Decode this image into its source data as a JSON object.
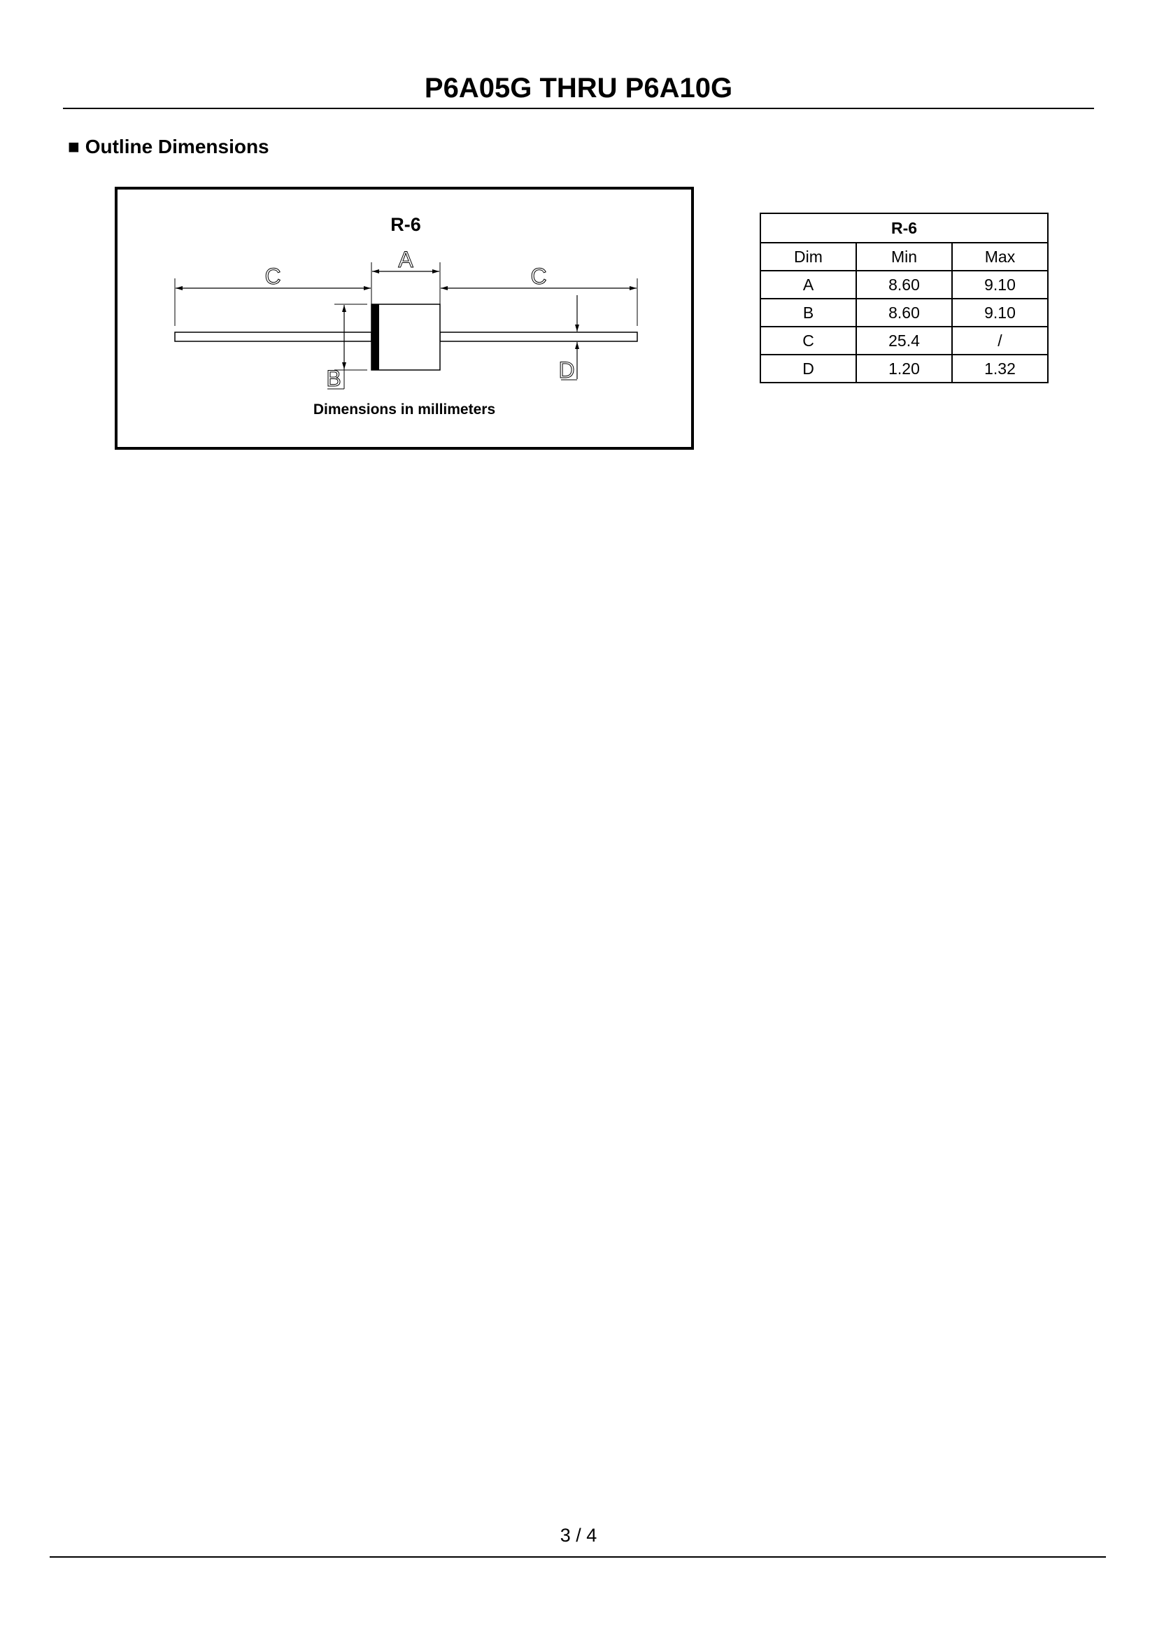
{
  "header": {
    "title": "P6A05G THRU P6A10G"
  },
  "section": {
    "bullet": "■",
    "heading": "Outline Dimensions"
  },
  "diagram": {
    "package": "R-6",
    "labels": {
      "a": "A",
      "b": "B",
      "c_left": "C",
      "c_right": "C",
      "d": "D"
    },
    "caption": "Dimensions in millimeters"
  },
  "table": {
    "title": "R-6",
    "columns": [
      "Dim",
      "Min",
      "Max"
    ],
    "rows": [
      [
        "A",
        "8.60",
        "9.10"
      ],
      [
        "B",
        "8.60",
        "9.10"
      ],
      [
        "C",
        "25.4",
        "/"
      ],
      [
        "D",
        "1.20",
        "1.32"
      ]
    ]
  },
  "footer": {
    "page": "3 / 4"
  }
}
